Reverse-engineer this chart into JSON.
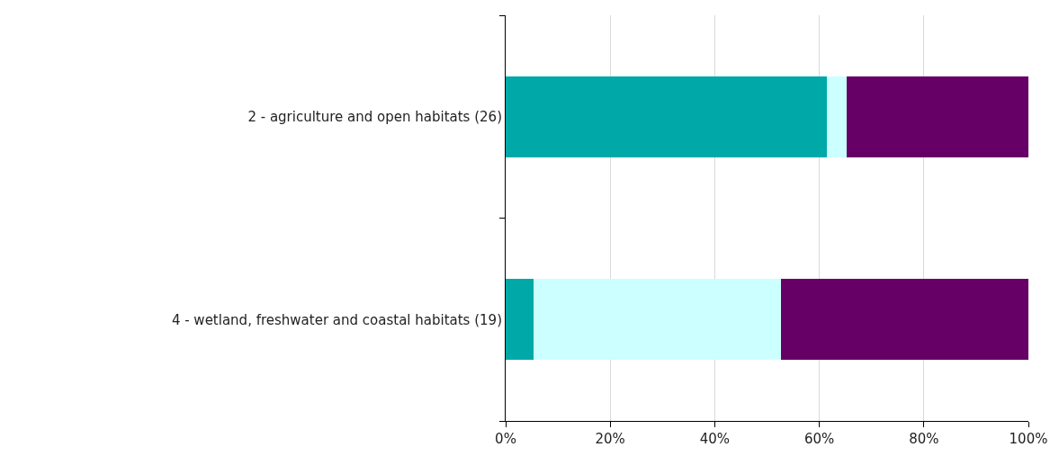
{
  "chart_data": {
    "type": "bar",
    "orientation": "horizontal",
    "stacked": true,
    "categories": [
      "2 - agriculture and open habitats (26)",
      "4 - wetland, freshwater and coastal habitats (19)"
    ],
    "series": [
      {
        "color": "#00a8a8",
        "values": [
          61.5,
          5.3
        ]
      },
      {
        "color": "#ccffff",
        "values": [
          3.8,
          47.4
        ]
      },
      {
        "color": "#660066",
        "values": [
          34.7,
          47.3
        ]
      }
    ],
    "xlim": [
      0,
      100
    ],
    "xticks": [
      {
        "value": 0,
        "label": "0%"
      },
      {
        "value": 20,
        "label": "20%"
      },
      {
        "value": 40,
        "label": "40%"
      },
      {
        "value": 60,
        "label": "60%"
      },
      {
        "value": 80,
        "label": "80%"
      },
      {
        "value": 100,
        "label": "100%"
      }
    ],
    "grid": "x"
  }
}
